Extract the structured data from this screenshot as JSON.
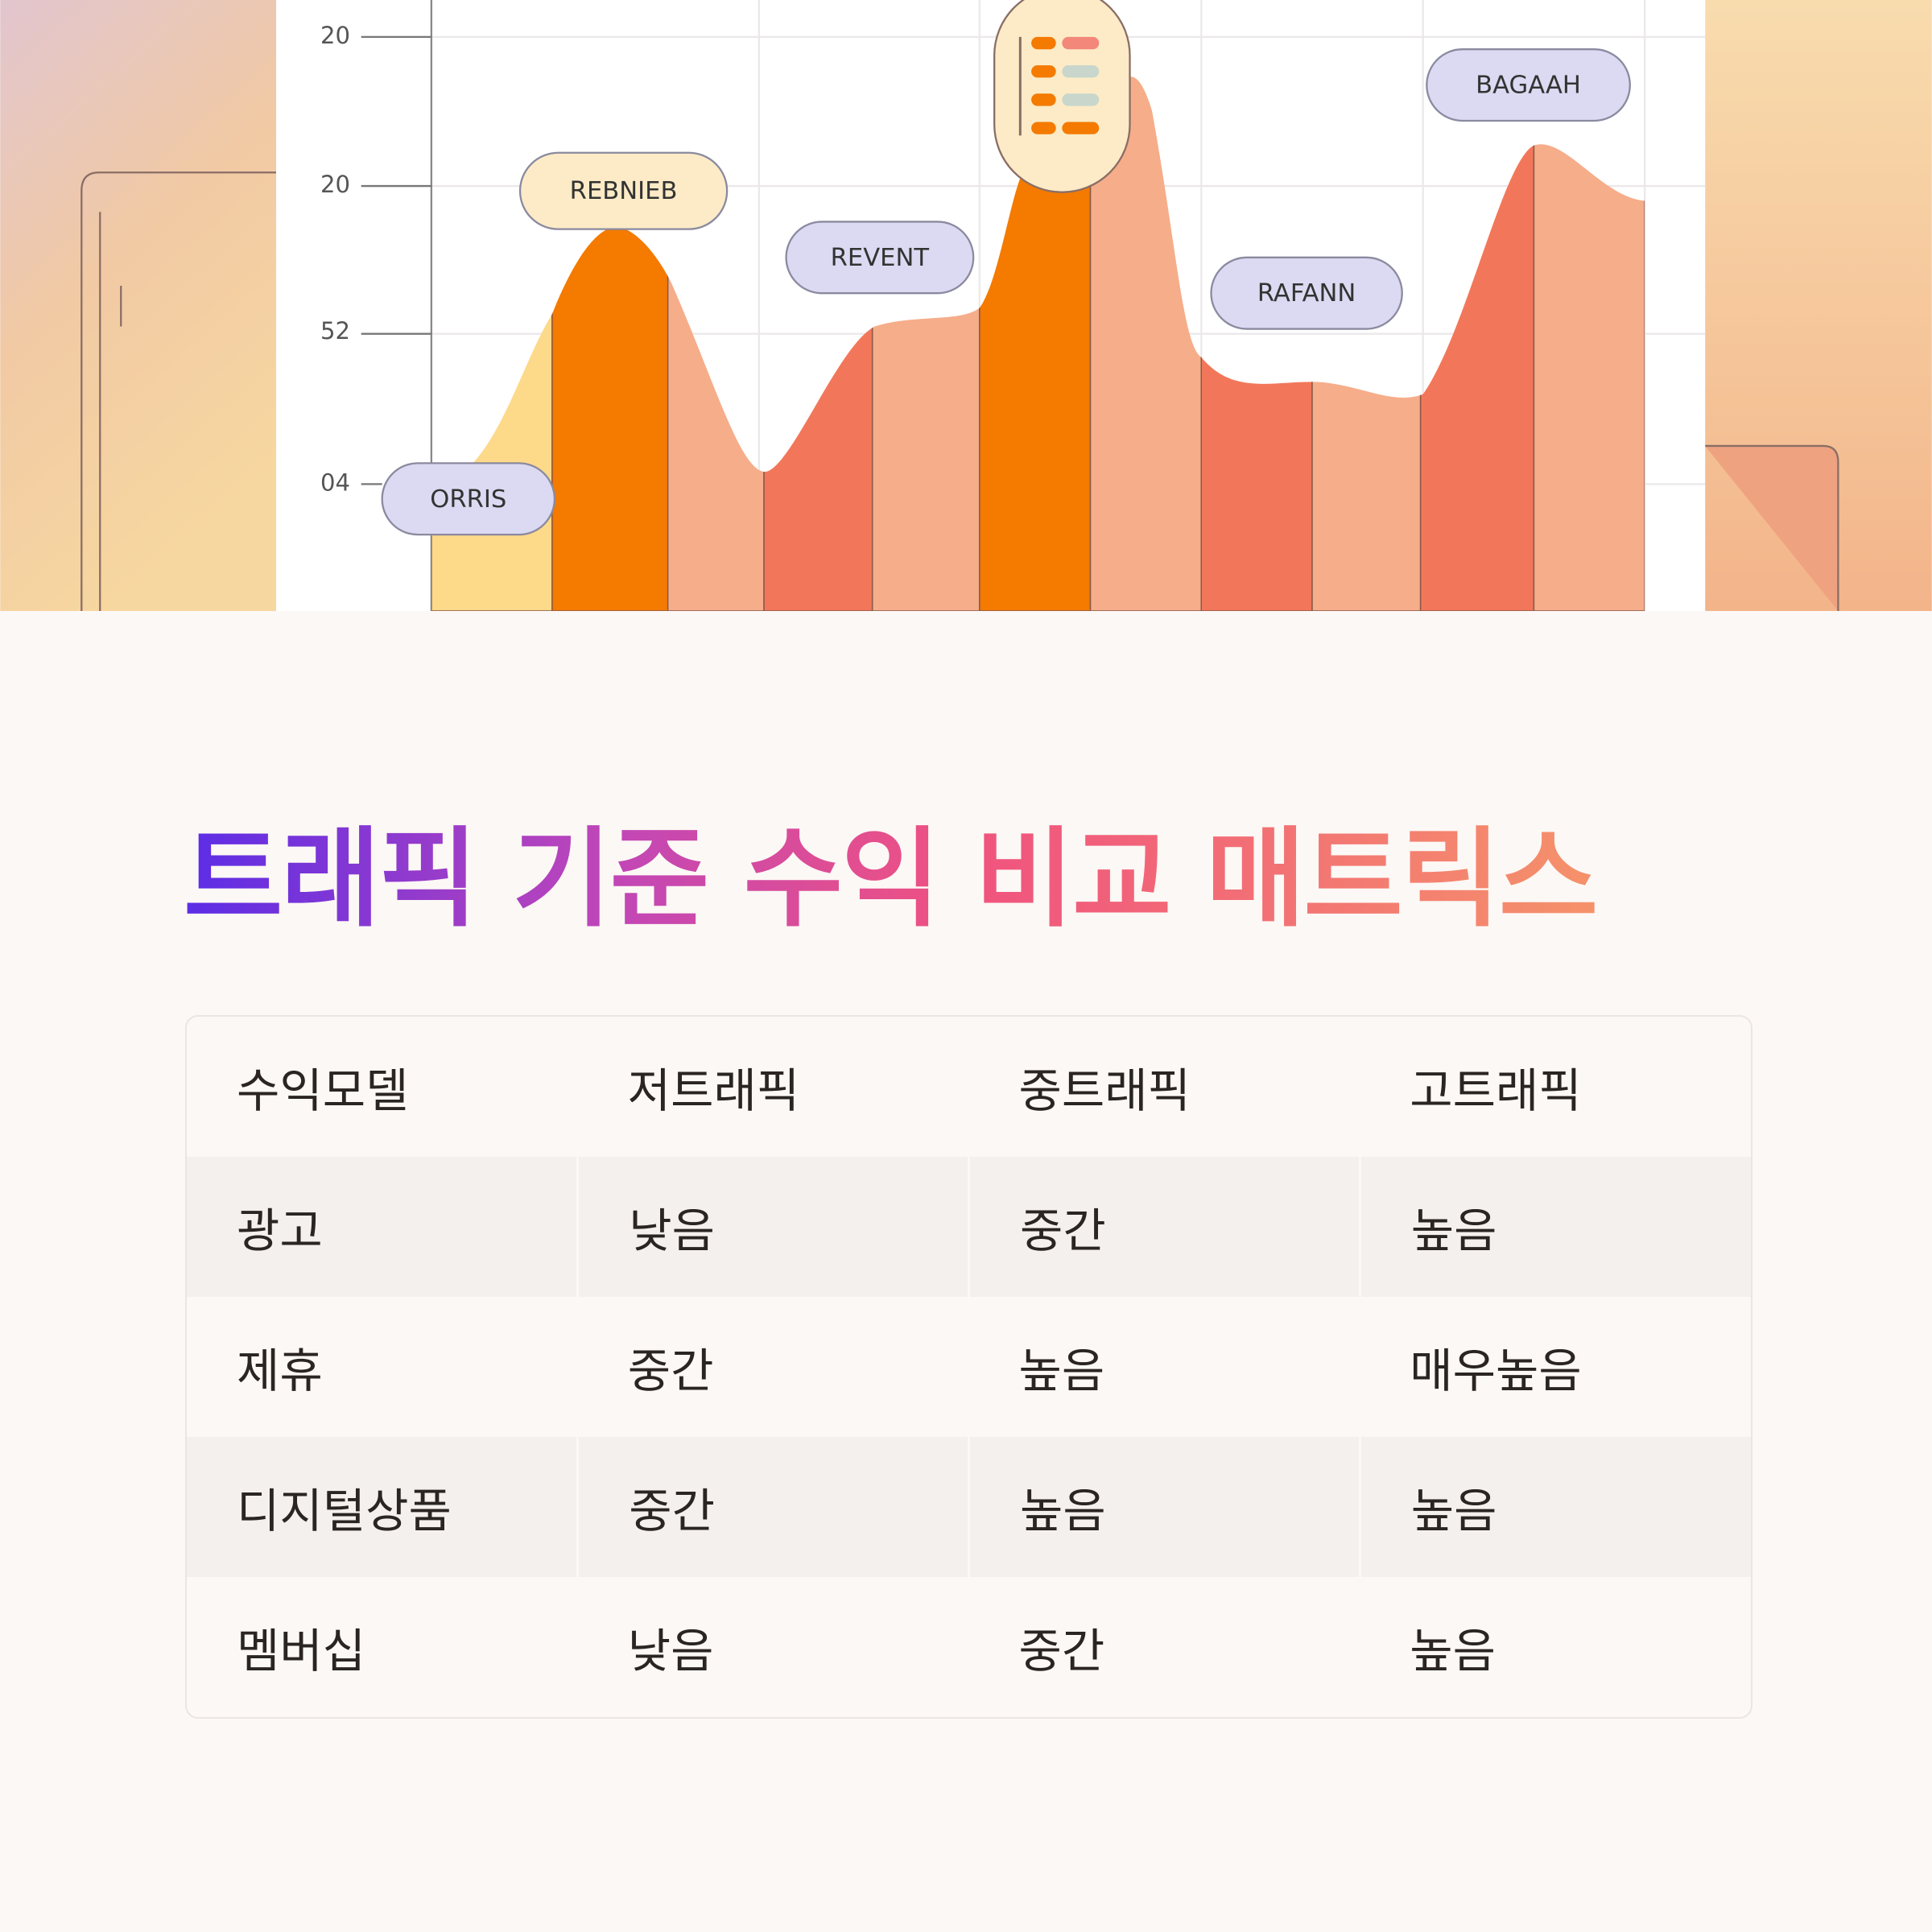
{
  "illustration": {
    "axis_labels": [
      "20",
      "20",
      "52",
      "04"
    ],
    "tags": [
      "ORRIS",
      "REBNIEB",
      "REVENT",
      "RAFANN",
      "BAGAAH"
    ]
  },
  "title": "트래픽 기준 수익 비교 매트릭스",
  "table": {
    "header": [
      "수익모델",
      "저트래픽",
      "중트래픽",
      "고트래픽"
    ],
    "rows": [
      [
        "광고",
        "낮음",
        "중간",
        "높음"
      ],
      [
        "제휴",
        "중간",
        "높음",
        "매우높음"
      ],
      [
        "디지털상품",
        "중간",
        "높음",
        "높음"
      ],
      [
        "멤버십",
        "낮음",
        "중간",
        "높음"
      ]
    ]
  }
}
